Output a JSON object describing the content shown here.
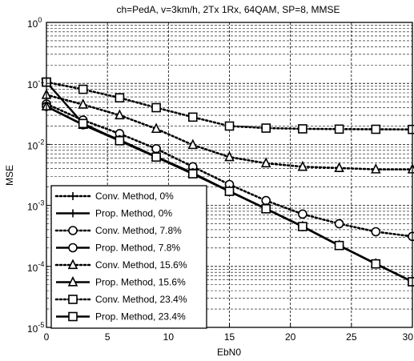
{
  "chart_data": {
    "type": "line",
    "title": "ch=PedA, v=3km/h, 2Tx 1Rx, 64QAM, SP=8, MMSE",
    "xlabel": "EbN0",
    "ylabel": "MSE",
    "xlim": [
      0,
      30
    ],
    "ylim": [
      1e-05,
      1
    ],
    "yscale": "log",
    "grid": "major-and-minor dashed",
    "legend_position": "bottom-left",
    "x_ticks": [
      "0",
      "5",
      "10",
      "15",
      "20",
      "25",
      "30"
    ],
    "y_ticks": [
      {
        "base": "10",
        "exp": "0",
        "value": 1
      },
      {
        "base": "10",
        "exp": "-1",
        "value": 0.1
      },
      {
        "base": "10",
        "exp": "-2",
        "value": 0.01
      },
      {
        "base": "10",
        "exp": "-3",
        "value": 0.001
      },
      {
        "base": "10",
        "exp": "-4",
        "value": 0.0001
      },
      {
        "base": "10",
        "exp": "-5",
        "value": 1e-05
      }
    ],
    "x": [
      0,
      3,
      6,
      9,
      12,
      15,
      18,
      21,
      24,
      27,
      30
    ],
    "series": [
      {
        "name": "Conv. Method, 0%",
        "marker": "plus",
        "line": "dotted",
        "values": [
          0.042,
          0.021,
          0.0115,
          0.0062,
          0.0033,
          0.0017,
          0.00088,
          0.00045,
          0.00022,
          0.00011,
          5.6e-05
        ]
      },
      {
        "name": "Prop. Method, 0%",
        "marker": "plus",
        "line": "solid",
        "values": [
          0.042,
          0.021,
          0.0115,
          0.0062,
          0.0033,
          0.0017,
          0.00088,
          0.00045,
          0.00022,
          0.00011,
          5.6e-05
        ]
      },
      {
        "name": "Conv. Method, 7.8%",
        "marker": "circle",
        "line": "dotted",
        "values": [
          0.046,
          0.025,
          0.015,
          0.0085,
          0.0043,
          0.0022,
          0.0012,
          0.00072,
          0.0005,
          0.00037,
          0.00031
        ]
      },
      {
        "name": "Prop. Method, 7.8%",
        "marker": "circle",
        "line": "solid",
        "values": [
          0.042,
          0.021,
          0.0118,
          0.0063,
          0.0034,
          0.0017,
          0.00088,
          0.00045,
          0.00022,
          0.00011,
          5.6e-05
        ]
      },
      {
        "name": "Conv. Method, 15.6%",
        "marker": "triangle",
        "line": "dotted",
        "values": [
          0.065,
          0.045,
          0.03,
          0.018,
          0.0098,
          0.0062,
          0.0049,
          0.0043,
          0.0041,
          0.0039,
          0.0039
        ]
      },
      {
        "name": "Prop. Method, 15.6%",
        "marker": "triangle",
        "line": "solid",
        "values": [
          0.042,
          0.021,
          0.0115,
          0.0062,
          0.0033,
          0.0017,
          0.00088,
          0.00045,
          0.00022,
          0.00011,
          5.6e-05
        ]
      },
      {
        "name": "Conv. Method, 23.4%",
        "marker": "square",
        "line": "dotted",
        "values": [
          0.105,
          0.08,
          0.058,
          0.04,
          0.028,
          0.02,
          0.0185,
          0.018,
          0.0178,
          0.0177,
          0.0176
        ]
      },
      {
        "name": "Prop. Method, 23.4%",
        "marker": "square",
        "line": "solid",
        "values": [
          0.105,
          0.022,
          0.0115,
          0.0062,
          0.0033,
          0.0017,
          0.00088,
          0.00045,
          0.00022,
          0.00011,
          5.6e-05
        ]
      }
    ]
  }
}
